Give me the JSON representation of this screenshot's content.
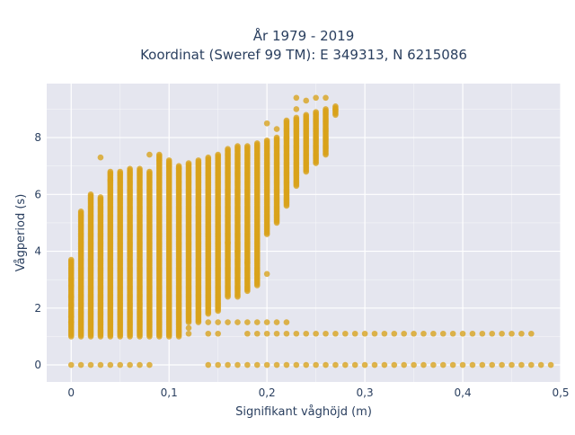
{
  "chart_data": {
    "type": "scatter",
    "title_line1": "År 1979 - 2019",
    "title_line2": "Koordinat (Sweref 99 TM): E 349313, N 6215086",
    "xlabel": "Signifikant våghöjd (m)",
    "ylabel": "Vågperiod (s)",
    "xlim": [
      -0.025,
      0.5
    ],
    "ylim": [
      -0.6,
      9.9
    ],
    "xticks": [
      0,
      0.1,
      0.2,
      0.3,
      0.4,
      0.5
    ],
    "xtick_labels": [
      "0",
      "0,1",
      "0,2",
      "0,3",
      "0,4",
      "0,5"
    ],
    "yticks": [
      0,
      2,
      4,
      6,
      8
    ],
    "ytick_labels": [
      "0",
      "2",
      "4",
      "6",
      "8"
    ],
    "grid": true,
    "background": "#e5e6ef",
    "marker_color": "#d9a21a",
    "columns": [
      {
        "x": 0.0,
        "ymin": 1.0,
        "ymax": 3.7
      },
      {
        "x": 0.01,
        "ymin": 1.0,
        "ymax": 5.4
      },
      {
        "x": 0.02,
        "ymin": 1.0,
        "ymax": 6.0
      },
      {
        "x": 0.03,
        "ymin": 1.0,
        "ymax": 5.9
      },
      {
        "x": 0.04,
        "ymin": 1.0,
        "ymax": 6.8
      },
      {
        "x": 0.05,
        "ymin": 1.0,
        "ymax": 6.8
      },
      {
        "x": 0.06,
        "ymin": 1.0,
        "ymax": 6.9
      },
      {
        "x": 0.07,
        "ymin": 1.0,
        "ymax": 6.9
      },
      {
        "x": 0.08,
        "ymin": 1.0,
        "ymax": 6.8
      },
      {
        "x": 0.09,
        "ymin": 1.0,
        "ymax": 7.4
      },
      {
        "x": 0.1,
        "ymin": 1.0,
        "ymax": 7.2
      },
      {
        "x": 0.11,
        "ymin": 1.0,
        "ymax": 7.0
      },
      {
        "x": 0.12,
        "ymin": 1.5,
        "ymax": 7.1
      },
      {
        "x": 0.13,
        "ymin": 1.5,
        "ymax": 7.2
      },
      {
        "x": 0.14,
        "ymin": 1.8,
        "ymax": 7.3
      },
      {
        "x": 0.15,
        "ymin": 1.9,
        "ymax": 7.4
      },
      {
        "x": 0.16,
        "ymin": 2.4,
        "ymax": 7.6
      },
      {
        "x": 0.17,
        "ymin": 2.4,
        "ymax": 7.7
      },
      {
        "x": 0.18,
        "ymin": 2.6,
        "ymax": 7.7
      },
      {
        "x": 0.19,
        "ymin": 2.8,
        "ymax": 7.8
      },
      {
        "x": 0.2,
        "ymin": 4.6,
        "ymax": 7.9
      },
      {
        "x": 0.21,
        "ymin": 5.0,
        "ymax": 8.0
      },
      {
        "x": 0.22,
        "ymin": 5.6,
        "ymax": 8.6
      },
      {
        "x": 0.23,
        "ymin": 6.3,
        "ymax": 8.7
      },
      {
        "x": 0.24,
        "ymin": 6.8,
        "ymax": 8.8
      },
      {
        "x": 0.25,
        "ymin": 7.1,
        "ymax": 8.9
      },
      {
        "x": 0.26,
        "ymin": 7.4,
        "ymax": 9.0
      },
      {
        "x": 0.27,
        "ymin": 8.8,
        "ymax": 9.1
      }
    ],
    "outliers": [
      {
        "x": 0.0,
        "y": 1.5
      },
      {
        "x": 0.0,
        "y": 1.7
      },
      {
        "x": 0.0,
        "y": 2.1
      },
      {
        "x": 0.0,
        "y": 2.4
      },
      {
        "x": 0.0,
        "y": 2.8
      },
      {
        "x": 0.0,
        "y": 3.0
      },
      {
        "x": 0.03,
        "y": 7.3
      },
      {
        "x": 0.04,
        "y": 6.5
      },
      {
        "x": 0.08,
        "y": 7.4
      },
      {
        "x": 0.09,
        "y": 7.2
      },
      {
        "x": 0.1,
        "y": 7.0
      },
      {
        "x": 0.11,
        "y": 6.9
      },
      {
        "x": 0.12,
        "y": 1.1
      },
      {
        "x": 0.12,
        "y": 1.3
      },
      {
        "x": 0.14,
        "y": 1.1
      },
      {
        "x": 0.15,
        "y": 1.1
      },
      {
        "x": 0.19,
        "y": 3.2
      },
      {
        "x": 0.2,
        "y": 3.2
      },
      {
        "x": 0.2,
        "y": 8.5
      },
      {
        "x": 0.21,
        "y": 8.3
      },
      {
        "x": 0.22,
        "y": 8.0
      },
      {
        "x": 0.23,
        "y": 9.4
      },
      {
        "x": 0.23,
        "y": 9.0
      },
      {
        "x": 0.24,
        "y": 9.3
      },
      {
        "x": 0.25,
        "y": 9.4
      },
      {
        "x": 0.26,
        "y": 9.4
      },
      {
        "x": 0.27,
        "y": 9.0
      },
      {
        "x": 0.16,
        "y": 4.3
      },
      {
        "x": 0.17,
        "y": 4.0
      },
      {
        "x": 0.18,
        "y": 3.6
      }
    ],
    "row_y15_x": [
      0.14,
      0.15,
      0.16,
      0.17,
      0.18,
      0.19,
      0.2,
      0.21,
      0.22
    ],
    "row_y11_x": [
      0.18,
      0.19,
      0.2,
      0.21,
      0.22,
      0.23,
      0.24,
      0.25,
      0.26,
      0.27,
      0.28,
      0.29,
      0.3,
      0.31,
      0.32,
      0.33,
      0.34,
      0.35,
      0.36,
      0.37,
      0.38,
      0.39,
      0.4,
      0.41,
      0.42,
      0.43,
      0.44,
      0.45,
      0.46,
      0.47
    ],
    "row_y0_x": [
      0.0,
      0.01,
      0.02,
      0.03,
      0.04,
      0.05,
      0.06,
      0.07,
      0.08,
      0.14,
      0.15,
      0.16,
      0.17,
      0.18,
      0.19,
      0.2,
      0.21,
      0.22,
      0.23,
      0.24,
      0.25,
      0.26,
      0.27,
      0.28,
      0.29,
      0.3,
      0.31,
      0.32,
      0.33,
      0.34,
      0.35,
      0.36,
      0.37,
      0.38,
      0.39,
      0.4,
      0.41,
      0.42,
      0.43,
      0.44,
      0.45,
      0.46,
      0.47,
      0.48,
      0.49
    ]
  }
}
